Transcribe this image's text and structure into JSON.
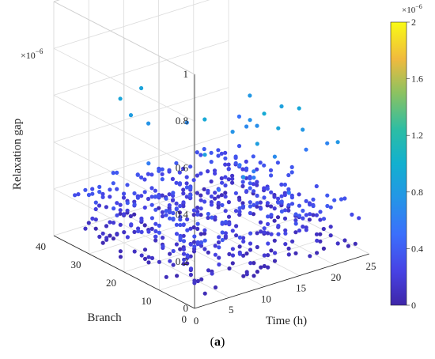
{
  "chart_data": {
    "type": "scatter",
    "projection": "3d",
    "grid": true,
    "colormap": "parula",
    "xlabel": "Time (h)",
    "ylabel": "Branch",
    "zlabel": "Relaxation gap",
    "xticks": [
      "0",
      "5",
      "10",
      "15",
      "20",
      "25"
    ],
    "yticks": [
      "0",
      "10",
      "20",
      "30",
      "40"
    ],
    "zticks": [
      "0",
      "0.2",
      "0.4",
      "0.6",
      "0.8",
      "1"
    ],
    "z_exponent_base": "×10",
    "z_exponent_power": "−6",
    "xlim": [
      0,
      25
    ],
    "ylim": [
      0,
      40
    ],
    "zlim": [
      0,
      1e-06
    ],
    "colorbar": {
      "ticks": [
        "0",
        "0.4",
        "0.8",
        "1.2",
        "1.6",
        "2"
      ],
      "range": [
        0,
        2e-06
      ],
      "exponent_base": "×10",
      "exponent_power": "−6"
    },
    "series": [
      {
        "points_note": "Approximately 1 point per (hour, branch) pair; hours 1–24, branches 1–37; z values mostly 0–0.3e-6 with a few near 0.4–0.6e-6",
        "x_range": [
          1,
          24
        ],
        "y_range": [
          1,
          37
        ],
        "z_range": [
          0,
          6e-07
        ]
      }
    ]
  },
  "caption": {
    "open": "(",
    "label": "a",
    "close": ")"
  }
}
